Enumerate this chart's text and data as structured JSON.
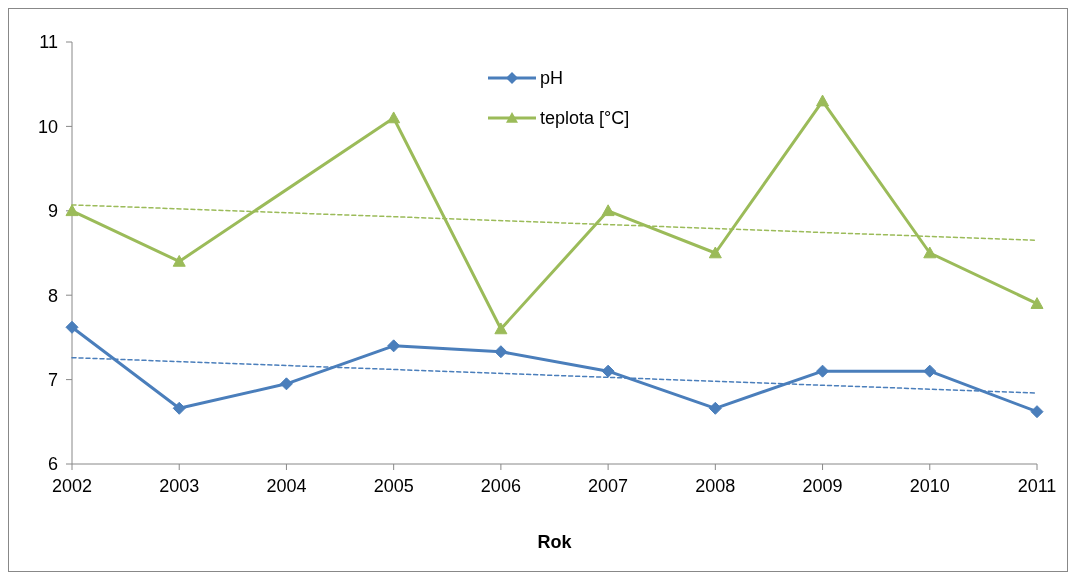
{
  "chart_data": {
    "type": "line",
    "xlabel": "Rok",
    "x": [
      2002,
      2003,
      2004,
      2005,
      2006,
      2007,
      2008,
      2009,
      2010,
      2011
    ],
    "xlim": [
      2002,
      2011
    ],
    "xticks": [
      2002,
      2003,
      2004,
      2005,
      2006,
      2007,
      2008,
      2009,
      2010,
      2011
    ],
    "ylim": [
      6,
      11
    ],
    "yticks": [
      6,
      7,
      8,
      9,
      10,
      11
    ],
    "grid": false,
    "legend": "top",
    "series": [
      {
        "name": "pH",
        "color": "#4a7ebb",
        "marker": "diamond",
        "values": [
          7.62,
          6.66,
          6.95,
          7.4,
          7.33,
          7.1,
          6.66,
          7.1,
          7.1,
          6.62
        ]
      },
      {
        "name": "teplota [°C]",
        "color": "#9bbb59",
        "marker": "triangle",
        "x": [
          2002,
          2003,
          2005,
          2006,
          2007,
          2008,
          2009,
          2010,
          2011
        ],
        "values": [
          9.0,
          8.4,
          10.1,
          7.6,
          9.0,
          8.5,
          10.3,
          8.5,
          7.9
        ]
      },
      {
        "type": "line",
        "color": "#4a7ebb",
        "marker": "none",
        "line_style": "dashed",
        "x": [
          2002,
          2011
        ],
        "values": [
          7.26,
          6.84
        ]
      },
      {
        "type": "line",
        "color": "#9bbb59",
        "marker": "none",
        "line_style": "dashed",
        "x": [
          2002,
          2011
        ],
        "values": [
          9.07,
          8.65
        ]
      }
    ]
  }
}
